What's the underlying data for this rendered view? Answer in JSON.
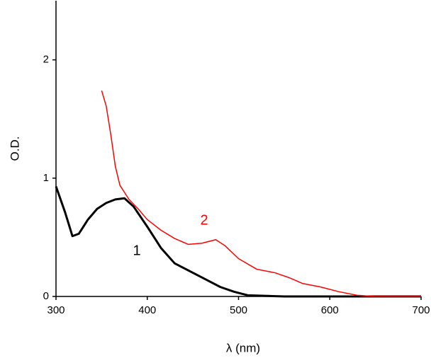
{
  "chart_data": {
    "type": "line",
    "x_label": "λ (nm)",
    "y_label": "O.D.",
    "xlim": [
      300,
      700
    ],
    "ylim": [
      0,
      2.5
    ],
    "xticks": [
      300,
      400,
      500,
      600,
      700
    ],
    "yticks": [
      0,
      1,
      2
    ],
    "series": [
      {
        "name": "1",
        "color": "#000000",
        "x": [
          300,
          310,
          318,
          325,
          335,
          345,
          355,
          365,
          375,
          385,
          400,
          415,
          430,
          450,
          465,
          480,
          495,
          510,
          550,
          600,
          650,
          700
        ],
        "values": [
          0.93,
          0.71,
          0.51,
          0.53,
          0.65,
          0.74,
          0.79,
          0.82,
          0.83,
          0.76,
          0.59,
          0.41,
          0.28,
          0.2,
          0.14,
          0.08,
          0.04,
          0.01,
          0,
          0,
          0,
          0
        ]
      },
      {
        "name": "2",
        "color": "#ff0000",
        "x": [
          350,
          355,
          360,
          365,
          370,
          380,
          390,
          400,
          415,
          430,
          445,
          460,
          475,
          485,
          500,
          520,
          540,
          555,
          570,
          590,
          610,
          630,
          650,
          700
        ],
        "values": [
          1.74,
          1.61,
          1.37,
          1.1,
          0.94,
          0.82,
          0.74,
          0.65,
          0.56,
          0.49,
          0.44,
          0.45,
          0.48,
          0.43,
          0.32,
          0.23,
          0.2,
          0.16,
          0.11,
          0.08,
          0.04,
          0.01,
          0,
          0
        ]
      }
    ]
  }
}
